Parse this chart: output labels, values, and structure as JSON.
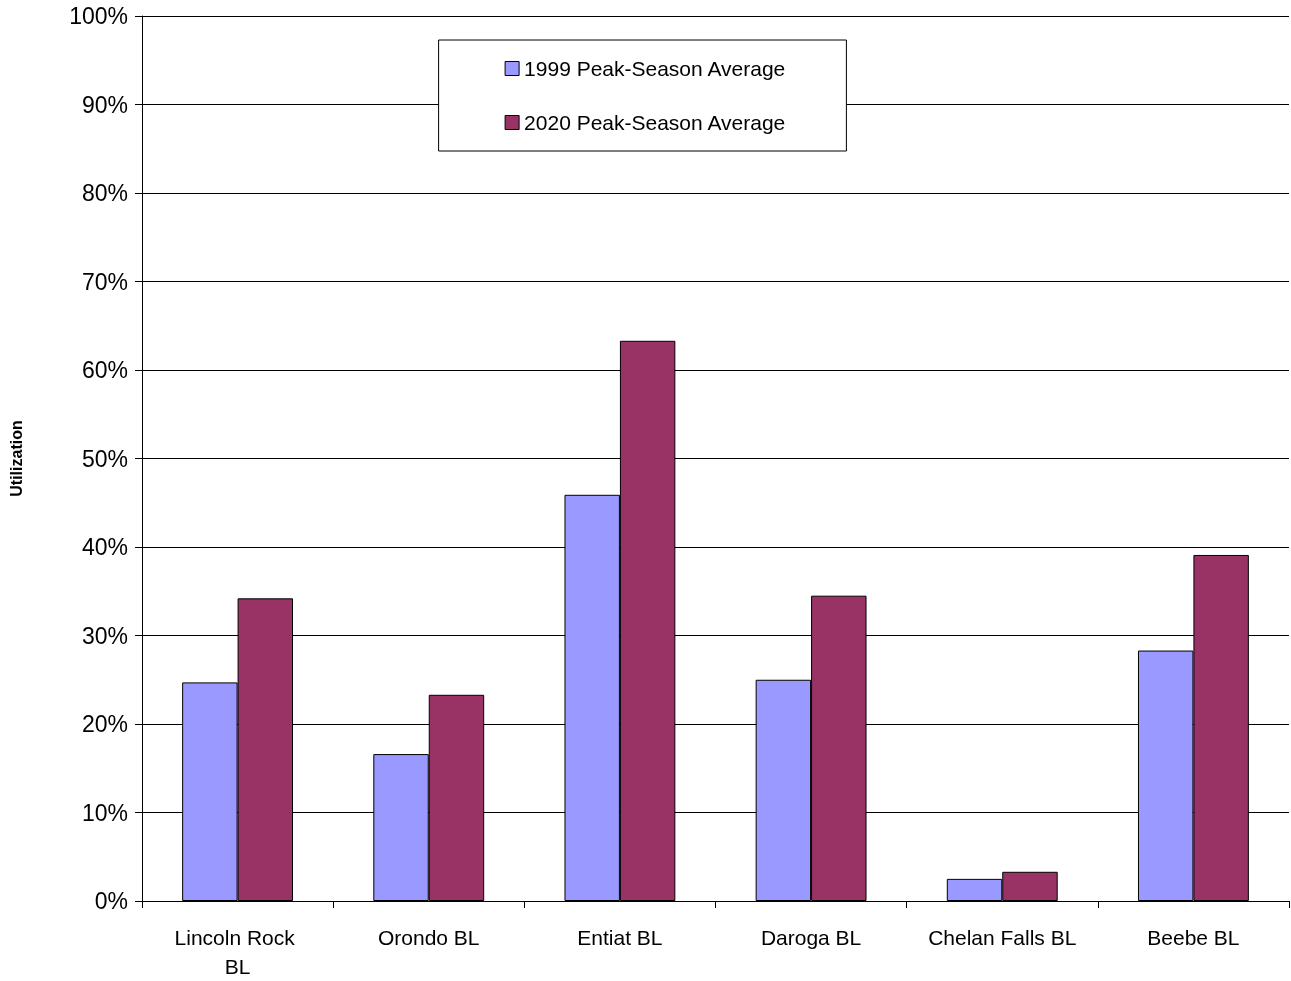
{
  "chart_data": {
    "type": "bar",
    "ylabel": "Utilization",
    "categories": [
      "Lincoln Rock BL",
      "Orondo BL",
      "Entiat BL",
      "Daroga BL",
      "Chelan Falls BL",
      "Beebe BL"
    ],
    "series": [
      {
        "name": "1999 Peak-Season Average",
        "color": "#9999ff",
        "values": [
          24.7,
          16.6,
          45.9,
          25.0,
          2.5,
          28.3
        ]
      },
      {
        "name": "2020 Peak-Season Average",
        "color": "#993366",
        "values": [
          34.2,
          23.3,
          63.3,
          34.5,
          3.3,
          39.1
        ]
      }
    ],
    "ylim": [
      0,
      100
    ],
    "yticks": [
      {
        "value": 0,
        "label": "0%"
      },
      {
        "value": 10,
        "label": "10%"
      },
      {
        "value": 20,
        "label": "20%"
      },
      {
        "value": 30,
        "label": "30%"
      },
      {
        "value": 40,
        "label": "40%"
      },
      {
        "value": 50,
        "label": "50%"
      },
      {
        "value": 60,
        "label": "60%"
      },
      {
        "value": 70,
        "label": "70%"
      },
      {
        "value": 80,
        "label": "80%"
      },
      {
        "value": 90,
        "label": "90%"
      },
      {
        "value": 100,
        "label": "100%"
      }
    ],
    "grid": "y",
    "legend": "top"
  }
}
